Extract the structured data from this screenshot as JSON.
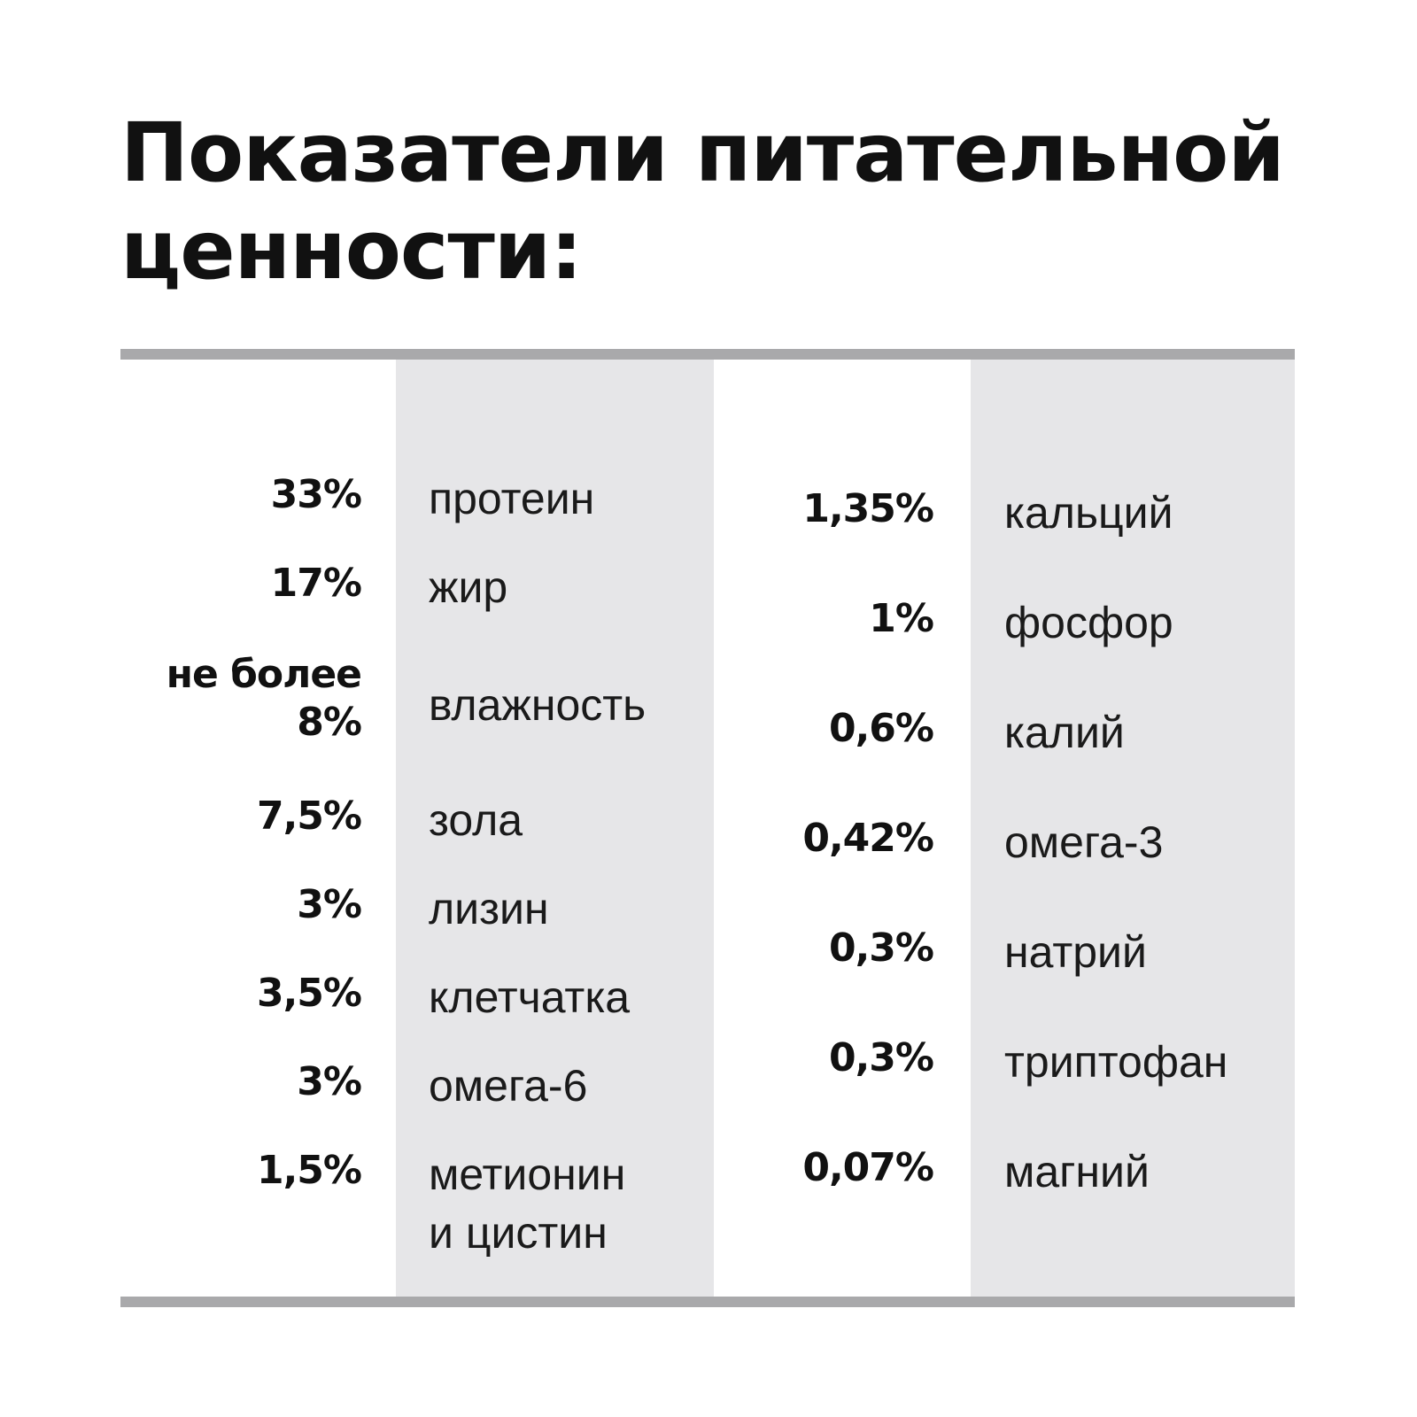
{
  "title": "Показатели питательной ценности:",
  "colors": {
    "shade": "#e6e6e8",
    "rule": "#a9a9ab",
    "text": "#111111"
  },
  "left_column": [
    {
      "value": "33%",
      "label": "протеин"
    },
    {
      "value": "17%",
      "label": "жир"
    },
    {
      "value": "не более\n8%",
      "label": "влажность"
    },
    {
      "value": "7,5%",
      "label": "зола"
    },
    {
      "value": "3%",
      "label": "лизин"
    },
    {
      "value": "3,5%",
      "label": "клетчатка"
    },
    {
      "value": "3%",
      "label": "омега-6"
    },
    {
      "value": "1,5%",
      "label": "метионин\nи цистин"
    }
  ],
  "right_column": [
    {
      "value": "1,35%",
      "label": "кальций"
    },
    {
      "value": "1%",
      "label": "фосфор"
    },
    {
      "value": "0,6%",
      "label": "калий"
    },
    {
      "value": "0,42%",
      "label": "омега-3"
    },
    {
      "value": "0,3%",
      "label": "натрий"
    },
    {
      "value": "0,3%",
      "label": "триптофан"
    },
    {
      "value": "0,07%",
      "label": "магний"
    }
  ]
}
